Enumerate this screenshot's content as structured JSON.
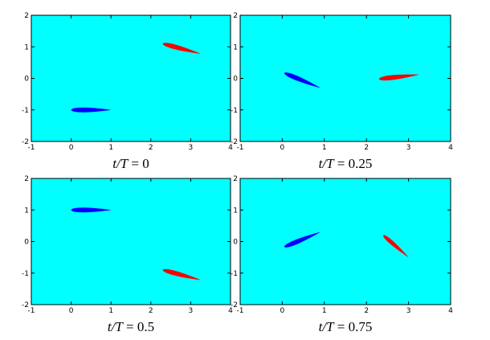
{
  "figure": {
    "background_color": "#00ffff",
    "upper_foil_color": "#ff0000",
    "lower_foil_color": "#0000ff"
  },
  "chart_data": [
    {
      "type": "diagram",
      "caption": {
        "var": "t/T",
        "eq": "= 0"
      },
      "xlim": [
        -1,
        4
      ],
      "ylim": [
        -2,
        2
      ],
      "x_ticks": [
        "-1",
        "0",
        "1",
        "2",
        "3",
        "4"
      ],
      "y_ticks": [
        "-2",
        "-1",
        "0",
        "1",
        "2"
      ],
      "foils": [
        {
          "color": "#0000ff",
          "leading_edge": [
            0.0,
            -1.0
          ],
          "trailing_edge": [
            1.0,
            -1.0
          ]
        },
        {
          "color": "#ff0000",
          "leading_edge": [
            2.3,
            1.1
          ],
          "trailing_edge": [
            3.25,
            0.78
          ]
        }
      ]
    },
    {
      "type": "diagram",
      "caption": {
        "var": "t/T",
        "eq": "= 0.25"
      },
      "xlim": [
        -1,
        4
      ],
      "ylim": [
        -2,
        2
      ],
      "x_ticks": [
        "-1",
        "0",
        "1",
        "2",
        "3",
        "4"
      ],
      "y_ticks": [
        "-2",
        "-1",
        "0",
        "1",
        "2"
      ],
      "foils": [
        {
          "color": "#0000ff",
          "leading_edge": [
            0.05,
            0.17
          ],
          "trailing_edge": [
            0.9,
            -0.3
          ]
        },
        {
          "color": "#ff0000",
          "leading_edge": [
            2.3,
            -0.02
          ],
          "trailing_edge": [
            3.25,
            0.12
          ]
        }
      ]
    },
    {
      "type": "diagram",
      "caption": {
        "var": "t/T",
        "eq": "= 0.5"
      },
      "xlim": [
        -1,
        4
      ],
      "ylim": [
        -2,
        2
      ],
      "x_ticks": [
        "-1",
        "0",
        "1",
        "2",
        "3",
        "4"
      ],
      "y_ticks": [
        "-2",
        "-1",
        "0",
        "1",
        "2"
      ],
      "foils": [
        {
          "color": "#0000ff",
          "leading_edge": [
            0.0,
            1.0
          ],
          "trailing_edge": [
            1.0,
            1.0
          ]
        },
        {
          "color": "#ff0000",
          "leading_edge": [
            2.3,
            -0.9
          ],
          "trailing_edge": [
            3.25,
            -1.22
          ]
        }
      ]
    },
    {
      "type": "diagram",
      "caption": {
        "var": "t/T",
        "eq": "= 0.75"
      },
      "xlim": [
        -1,
        4
      ],
      "ylim": [
        -2,
        2
      ],
      "x_ticks": [
        "-1",
        "0",
        "1",
        "2",
        "3",
        "4"
      ],
      "y_ticks": [
        "-2",
        "-1",
        "0",
        "1",
        "2"
      ],
      "foils": [
        {
          "color": "#0000ff",
          "leading_edge": [
            0.05,
            -0.17
          ],
          "trailing_edge": [
            0.9,
            0.3
          ]
        },
        {
          "color": "#ff0000",
          "leading_edge": [
            2.4,
            0.2
          ],
          "trailing_edge": [
            3.0,
            -0.5
          ]
        }
      ]
    }
  ]
}
